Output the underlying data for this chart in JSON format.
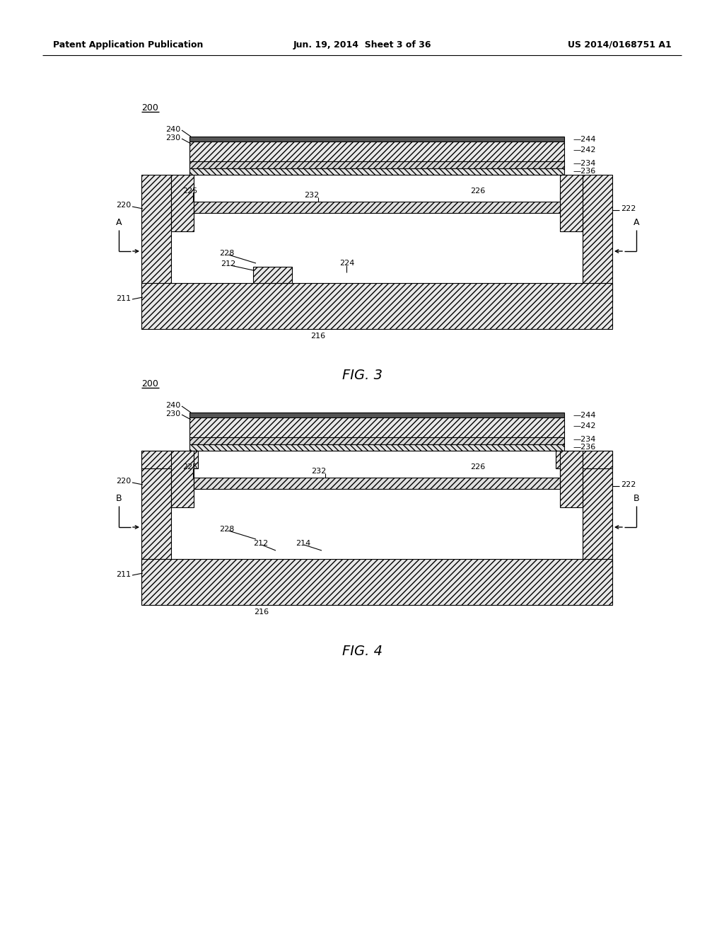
{
  "background_color": "#ffffff",
  "header_left": "Patent Application Publication",
  "header_center": "Jun. 19, 2014  Sheet 3 of 36",
  "header_right": "US 2014/0168751 A1",
  "fig3_label": "FIG. 3",
  "fig4_label": "FIG. 4"
}
